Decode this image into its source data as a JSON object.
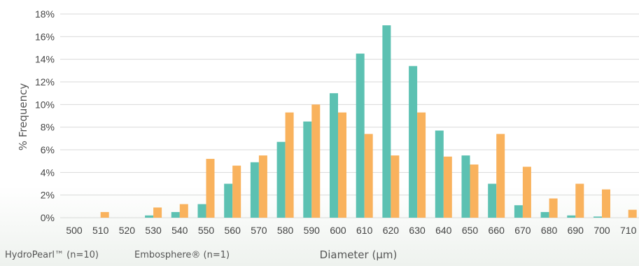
{
  "chart_data": {
    "type": "bar",
    "xlabel": "Diameter (µm)",
    "ylabel": "% Frequency",
    "categories": [
      "500",
      "510",
      "520",
      "530",
      "540",
      "550",
      "560",
      "570",
      "580",
      "590",
      "600",
      "610",
      "620",
      "630",
      "640",
      "650",
      "660",
      "670",
      "680",
      "690",
      "700",
      "710"
    ],
    "series": [
      {
        "name": "HydroPearl™ (n=10)",
        "color": "#5cc1b2",
        "values": [
          0,
          0,
          0,
          0.2,
          0.5,
          1.2,
          3.0,
          4.9,
          6.7,
          8.5,
          11.0,
          14.5,
          17.0,
          13.4,
          7.7,
          5.5,
          3.0,
          1.1,
          0.5,
          0.2,
          0.1,
          0
        ]
      },
      {
        "name": "Embosphere® (n=1)",
        "color": "#f9b25d",
        "values": [
          0,
          0.5,
          0,
          0.9,
          1.2,
          5.2,
          4.6,
          5.5,
          9.3,
          10.0,
          9.3,
          7.4,
          5.5,
          9.3,
          5.4,
          4.7,
          7.4,
          4.5,
          1.7,
          3.0,
          2.5,
          0.7
        ]
      }
    ],
    "y_ticks": [
      "0%",
      "2%",
      "4%",
      "6%",
      "8%",
      "10%",
      "12%",
      "14%",
      "16%",
      "18%"
    ],
    "ylim": [
      0,
      18
    ],
    "grid": true,
    "legend": "bottom-left"
  }
}
